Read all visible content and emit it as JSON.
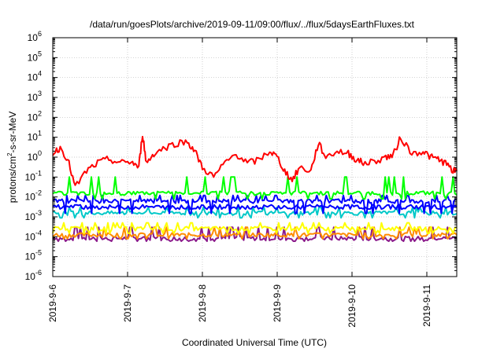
{
  "chart_data": {
    "type": "line",
    "title": "/data/run/goesPlots/archive/2019-09-11/09:00/flux/../flux/5daysEarthFluxes.txt",
    "xlabel": "Coordinated Universal Time (UTC)",
    "ylabel_parts": [
      "protons/cm",
      "2",
      "-s-sr-MeV"
    ],
    "yscale": "log",
    "ylim_exponents": [
      -6,
      6
    ],
    "y_tick_labels": [
      {
        "base": "10",
        "exp": "-6"
      },
      {
        "base": "10",
        "exp": "-5"
      },
      {
        "base": "10",
        "exp": "-4"
      },
      {
        "base": "10",
        "exp": "-3"
      },
      {
        "base": "10",
        "exp": "-2"
      },
      {
        "base": "10",
        "exp": "-1"
      },
      {
        "base": "10",
        "exp": "0"
      },
      {
        "base": "10",
        "exp": "1"
      },
      {
        "base": "10",
        "exp": "2"
      },
      {
        "base": "10",
        "exp": "3"
      },
      {
        "base": "10",
        "exp": "4"
      },
      {
        "base": "10",
        "exp": "5"
      },
      {
        "base": "10",
        "exp": "6"
      }
    ],
    "x_tick_labels": [
      "2019-9-6",
      "2019-9-7",
      "2019-9-8",
      "2019-9-9",
      "2019-9-10",
      "2019-9-11"
    ],
    "xlim_days": [
      0,
      5.4
    ],
    "grid": true,
    "series": [
      {
        "color": "#ff0000",
        "x": [
          0,
          0.1,
          0.2,
          0.3,
          0.45,
          0.6,
          0.75,
          0.9,
          1.05,
          1.15,
          1.2,
          1.25,
          1.35,
          1.5,
          1.65,
          1.8,
          1.9,
          2.0,
          2.15,
          2.3,
          2.45,
          2.6,
          2.75,
          2.9,
          3.0,
          3.1,
          3.2,
          3.3,
          3.45,
          3.55,
          3.65,
          3.8,
          3.95,
          4.05,
          4.15,
          4.3,
          4.45,
          4.55,
          4.65,
          4.8,
          4.95,
          5.05,
          5.15,
          5.25,
          5.35,
          5.4
        ],
        "y": [
          1.5,
          3,
          0.8,
          0.03,
          0.2,
          0.5,
          0.8,
          0.5,
          0.6,
          0.3,
          15,
          0.5,
          1.5,
          3,
          5,
          6,
          2,
          0.3,
          0.1,
          0.5,
          1.5,
          0.5,
          0.7,
          2,
          1.0,
          0.2,
          0.07,
          0.3,
          0.2,
          5,
          1,
          2,
          1.5,
          0.8,
          0.5,
          0.6,
          1,
          1.2,
          10,
          1.5,
          2,
          1,
          0.8,
          0.5,
          0.2,
          0.2
        ]
      },
      {
        "color": "#00ff00",
        "base": 0.015,
        "spike": 0.1,
        "low": 0.008
      },
      {
        "color": "#0000ff",
        "base": 0.006,
        "spike": 0.012,
        "low": 0.0015,
        "dense": true
      },
      {
        "color": "#0000ff",
        "base": 0.003,
        "spike": 0.004,
        "low": 0.0025
      },
      {
        "color": "#00c8c8",
        "base": 0.0015,
        "spike": 0.003,
        "low": 0.0009
      },
      {
        "color": "#ffff00",
        "base": 0.00025,
        "spike": 0.0005,
        "low": 0.00015
      },
      {
        "color": "#ff8c00",
        "base": 0.00012,
        "spike": 0.0003,
        "low": 8e-05
      },
      {
        "color": "#8b1a8b",
        "base": 8e-05,
        "spike": 0.0003,
        "low": 6e-05
      }
    ]
  }
}
